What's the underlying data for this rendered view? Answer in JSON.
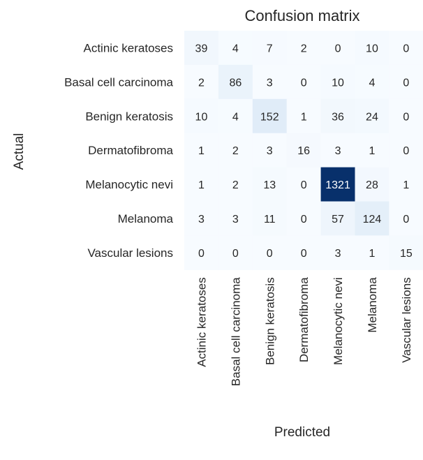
{
  "chart_data": {
    "type": "heatmap",
    "title": "Confusion matrix",
    "xlabel": "Predicted",
    "ylabel": "Actual",
    "row_labels": [
      "Actinic keratoses",
      "Basal cell carcinoma",
      "Benign keratosis",
      "Dermatofibroma",
      "Melanocytic nevi",
      "Melanoma",
      "Vascular lesions"
    ],
    "col_labels": [
      "Actinic keratoses",
      "Basal cell carcinoma",
      "Benign keratosis",
      "Dermatofibroma",
      "Melanocytic nevi",
      "Melanoma",
      "Vascular lesions"
    ],
    "values": [
      [
        39,
        4,
        7,
        2,
        0,
        10,
        0
      ],
      [
        2,
        86,
        3,
        0,
        10,
        4,
        0
      ],
      [
        10,
        4,
        152,
        1,
        36,
        24,
        0
      ],
      [
        1,
        2,
        3,
        16,
        3,
        1,
        0
      ],
      [
        1,
        2,
        13,
        0,
        1321,
        28,
        1
      ],
      [
        3,
        3,
        11,
        0,
        57,
        124,
        0
      ],
      [
        0,
        0,
        0,
        0,
        3,
        1,
        15
      ]
    ],
    "colormap": "Blues",
    "color_min": 0,
    "color_max": 1321,
    "grid": false,
    "legend": "none"
  }
}
